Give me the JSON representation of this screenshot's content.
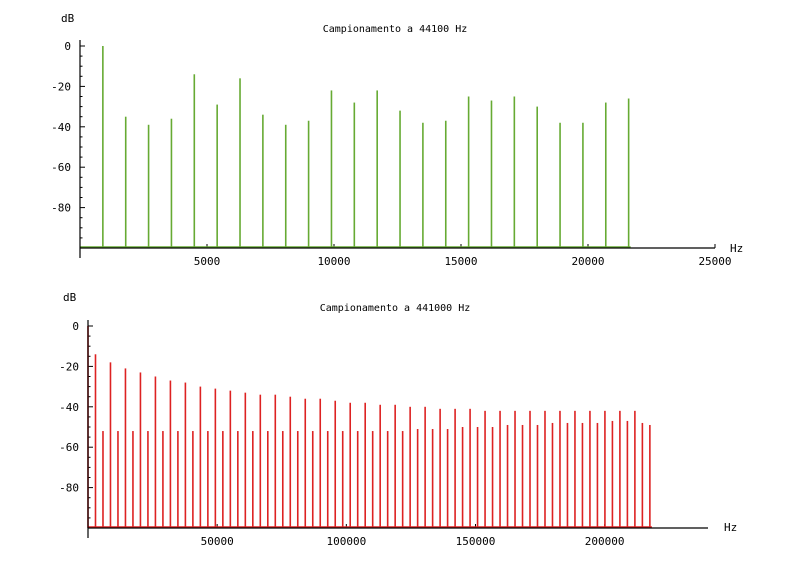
{
  "chart_data": [
    {
      "type": "bar",
      "title": "Campionamento a 44100 Hz",
      "xlabel": "Hz",
      "ylabel": "dB",
      "xlim": [
        0,
        25000
      ],
      "ylim": [
        -100,
        0
      ],
      "baseline": -100,
      "color": "#66aa33",
      "xticks": [
        5000,
        10000,
        15000,
        20000,
        25000
      ],
      "yticks": [
        0,
        -20,
        -40,
        -60,
        -80
      ],
      "series": [
        {
          "x": [
            900,
            1800,
            2700,
            3600,
            4500,
            5400,
            6300,
            7200,
            8100,
            9000,
            9900,
            10800,
            11700,
            12600,
            13500,
            14400,
            15300,
            16200,
            17100,
            18000,
            18900,
            19800,
            20700,
            21600
          ],
          "values": [
            0,
            -35,
            -39,
            -36,
            -14,
            -29,
            -16,
            -34,
            -39,
            -37,
            -22,
            -28,
            -22,
            -32,
            -38,
            -37,
            -25,
            -27,
            -25,
            -30,
            -38,
            -38,
            -28,
            -26
          ]
        }
      ]
    },
    {
      "type": "bar",
      "title": "Campionamento a 441000 Hz",
      "xlabel": "Hz",
      "ylabel": "dB",
      "xlim": [
        0,
        240000
      ],
      "ylim": [
        -100,
        0
      ],
      "baseline": -100,
      "color": "#dd2222",
      "xticks": [
        50000,
        100000,
        150000,
        200000
      ],
      "yticks": [
        0,
        -20,
        -40,
        -60,
        -80
      ],
      "series": [
        {
          "x": [
            0,
            2900,
            5800,
            8700,
            11600,
            14500,
            17400,
            20300,
            23200,
            26100,
            29000,
            31900,
            34800,
            37700,
            40600,
            43500,
            46400,
            49300,
            52200,
            55100,
            58000,
            60900,
            63800,
            66700,
            69600,
            72500,
            75400,
            78300,
            81200,
            84100,
            87000,
            89900,
            92800,
            95700,
            98600,
            101500,
            104400,
            107300,
            110200,
            113100,
            116000,
            118900,
            121800,
            124700,
            127600,
            130500,
            133400,
            136300,
            139200,
            142100,
            145000,
            147900,
            150800,
            153700,
            156600,
            159500,
            162400,
            165300,
            168200,
            171100,
            174000,
            176900,
            179800,
            182700,
            185600,
            188500,
            191400,
            194300,
            197200,
            200100,
            203000,
            205900,
            208800,
            211700,
            214600,
            217500
          ],
          "values": [
            0,
            -14,
            -52,
            -18,
            -52,
            -21,
            -52,
            -23,
            -52,
            -25,
            -52,
            -27,
            -52,
            -28,
            -52,
            -30,
            -52,
            -31,
            -52,
            -32,
            -52,
            -33,
            -52,
            -34,
            -52,
            -34,
            -52,
            -35,
            -52,
            -36,
            -52,
            -36,
            -52,
            -37,
            -52,
            -38,
            -52,
            -38,
            -52,
            -39,
            -52,
            -39,
            -52,
            -40,
            -51,
            -40,
            -51,
            -41,
            -51,
            -41,
            -50,
            -41,
            -50,
            -42,
            -50,
            -42,
            -49,
            -42,
            -49,
            -42,
            -49,
            -42,
            -48,
            -42,
            -48,
            -42,
            -48,
            -42,
            -48,
            -42,
            -47,
            -42,
            -47,
            -42,
            -48,
            -49
          ]
        }
      ]
    }
  ]
}
